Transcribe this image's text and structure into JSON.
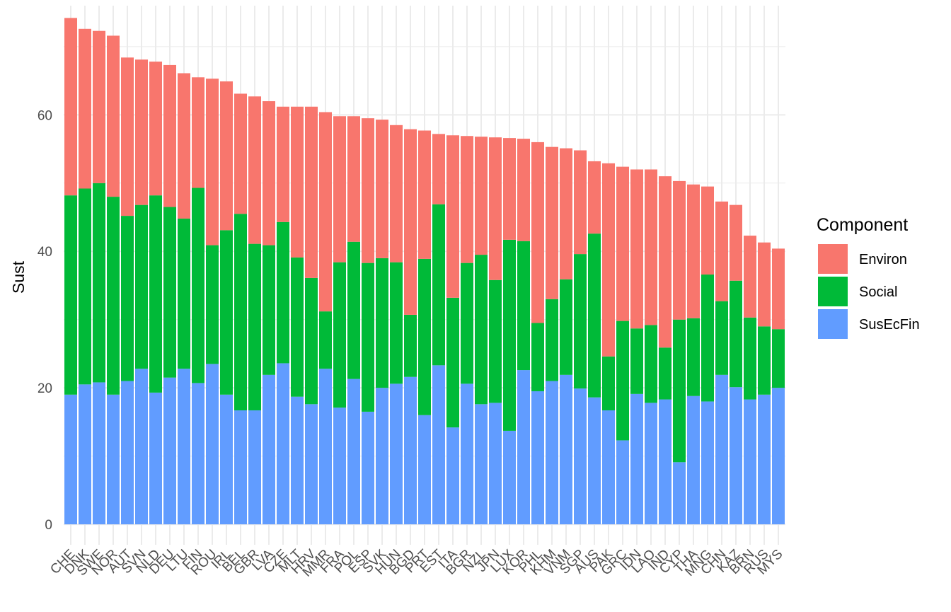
{
  "chart_data": {
    "type": "bar",
    "stacked": true,
    "title": "",
    "xlabel": "",
    "ylabel": "Sust",
    "ylim": [
      -3,
      76
    ],
    "yticks": [
      0,
      20,
      40,
      60
    ],
    "grid": true,
    "legend": {
      "title": "Component",
      "placement": "right"
    },
    "categories": [
      "CHE",
      "DNK",
      "SWE",
      "NOR",
      "AUT",
      "SVN",
      "NLD",
      "DEU",
      "LTU",
      "FIN",
      "ROU",
      "IRL",
      "BEL",
      "GBR",
      "LVA",
      "CZE",
      "MLT",
      "HRV",
      "MMR",
      "FRA",
      "POL",
      "ESP",
      "SVK",
      "HUN",
      "BGD",
      "PRT",
      "EST",
      "ITA",
      "BGR",
      "NZL",
      "JPN",
      "LUX",
      "KOR",
      "PHL",
      "KHM",
      "VNM",
      "SGP",
      "AUS",
      "PAK",
      "GRC",
      "IDN",
      "LAO",
      "IND",
      "CYP",
      "THA",
      "MNG",
      "CHN",
      "KAZ",
      "BRN",
      "RUS",
      "MYS"
    ],
    "series": [
      {
        "name": "SusEcFin",
        "color": "#619CFF",
        "values": [
          19.0,
          20.5,
          20.8,
          19.0,
          21.0,
          22.8,
          19.3,
          21.5,
          22.8,
          20.7,
          23.5,
          19.0,
          16.7,
          16.7,
          21.9,
          23.6,
          18.7,
          17.6,
          22.8,
          17.1,
          21.3,
          16.5,
          20.0,
          20.6,
          21.6,
          16.0,
          23.3,
          14.2,
          20.6,
          17.6,
          17.8,
          13.7,
          22.6,
          19.5,
          21.0,
          21.9,
          19.9,
          18.6,
          16.7,
          12.3,
          19.1,
          17.8,
          18.3,
          9.1,
          18.8,
          18.0,
          21.9,
          20.1,
          18.3,
          19.0,
          20.0
        ]
      },
      {
        "name": "Social",
        "color": "#00BA38",
        "values": [
          29.2,
          28.7,
          29.2,
          29.0,
          24.2,
          24.0,
          28.9,
          25.0,
          22.0,
          28.6,
          17.4,
          24.1,
          28.8,
          24.4,
          19.0,
          20.7,
          20.4,
          18.5,
          8.4,
          21.3,
          20.1,
          21.8,
          19.0,
          17.8,
          9.1,
          22.9,
          23.6,
          19.0,
          17.7,
          21.9,
          18.0,
          28.0,
          18.9,
          10.0,
          12.0,
          14.0,
          19.7,
          24.0,
          7.9,
          17.5,
          9.6,
          11.4,
          7.6,
          20.9,
          11.4,
          18.6,
          10.8,
          15.6,
          12.0,
          10.0,
          8.6
        ]
      },
      {
        "name": "Environ",
        "color": "#F8766D",
        "values": [
          26.0,
          23.4,
          22.3,
          23.6,
          23.2,
          21.3,
          19.6,
          20.8,
          21.3,
          16.2,
          24.4,
          21.8,
          17.6,
          21.6,
          21.1,
          16.9,
          22.1,
          25.1,
          29.2,
          21.4,
          18.4,
          21.2,
          20.3,
          20.1,
          27.2,
          18.8,
          10.3,
          23.8,
          18.6,
          17.3,
          20.9,
          14.9,
          15.0,
          26.5,
          22.3,
          19.2,
          15.2,
          10.6,
          28.3,
          22.6,
          23.3,
          22.8,
          25.1,
          20.3,
          19.6,
          12.9,
          14.6,
          11.1,
          12.0,
          12.3,
          11.8
        ]
      }
    ]
  }
}
